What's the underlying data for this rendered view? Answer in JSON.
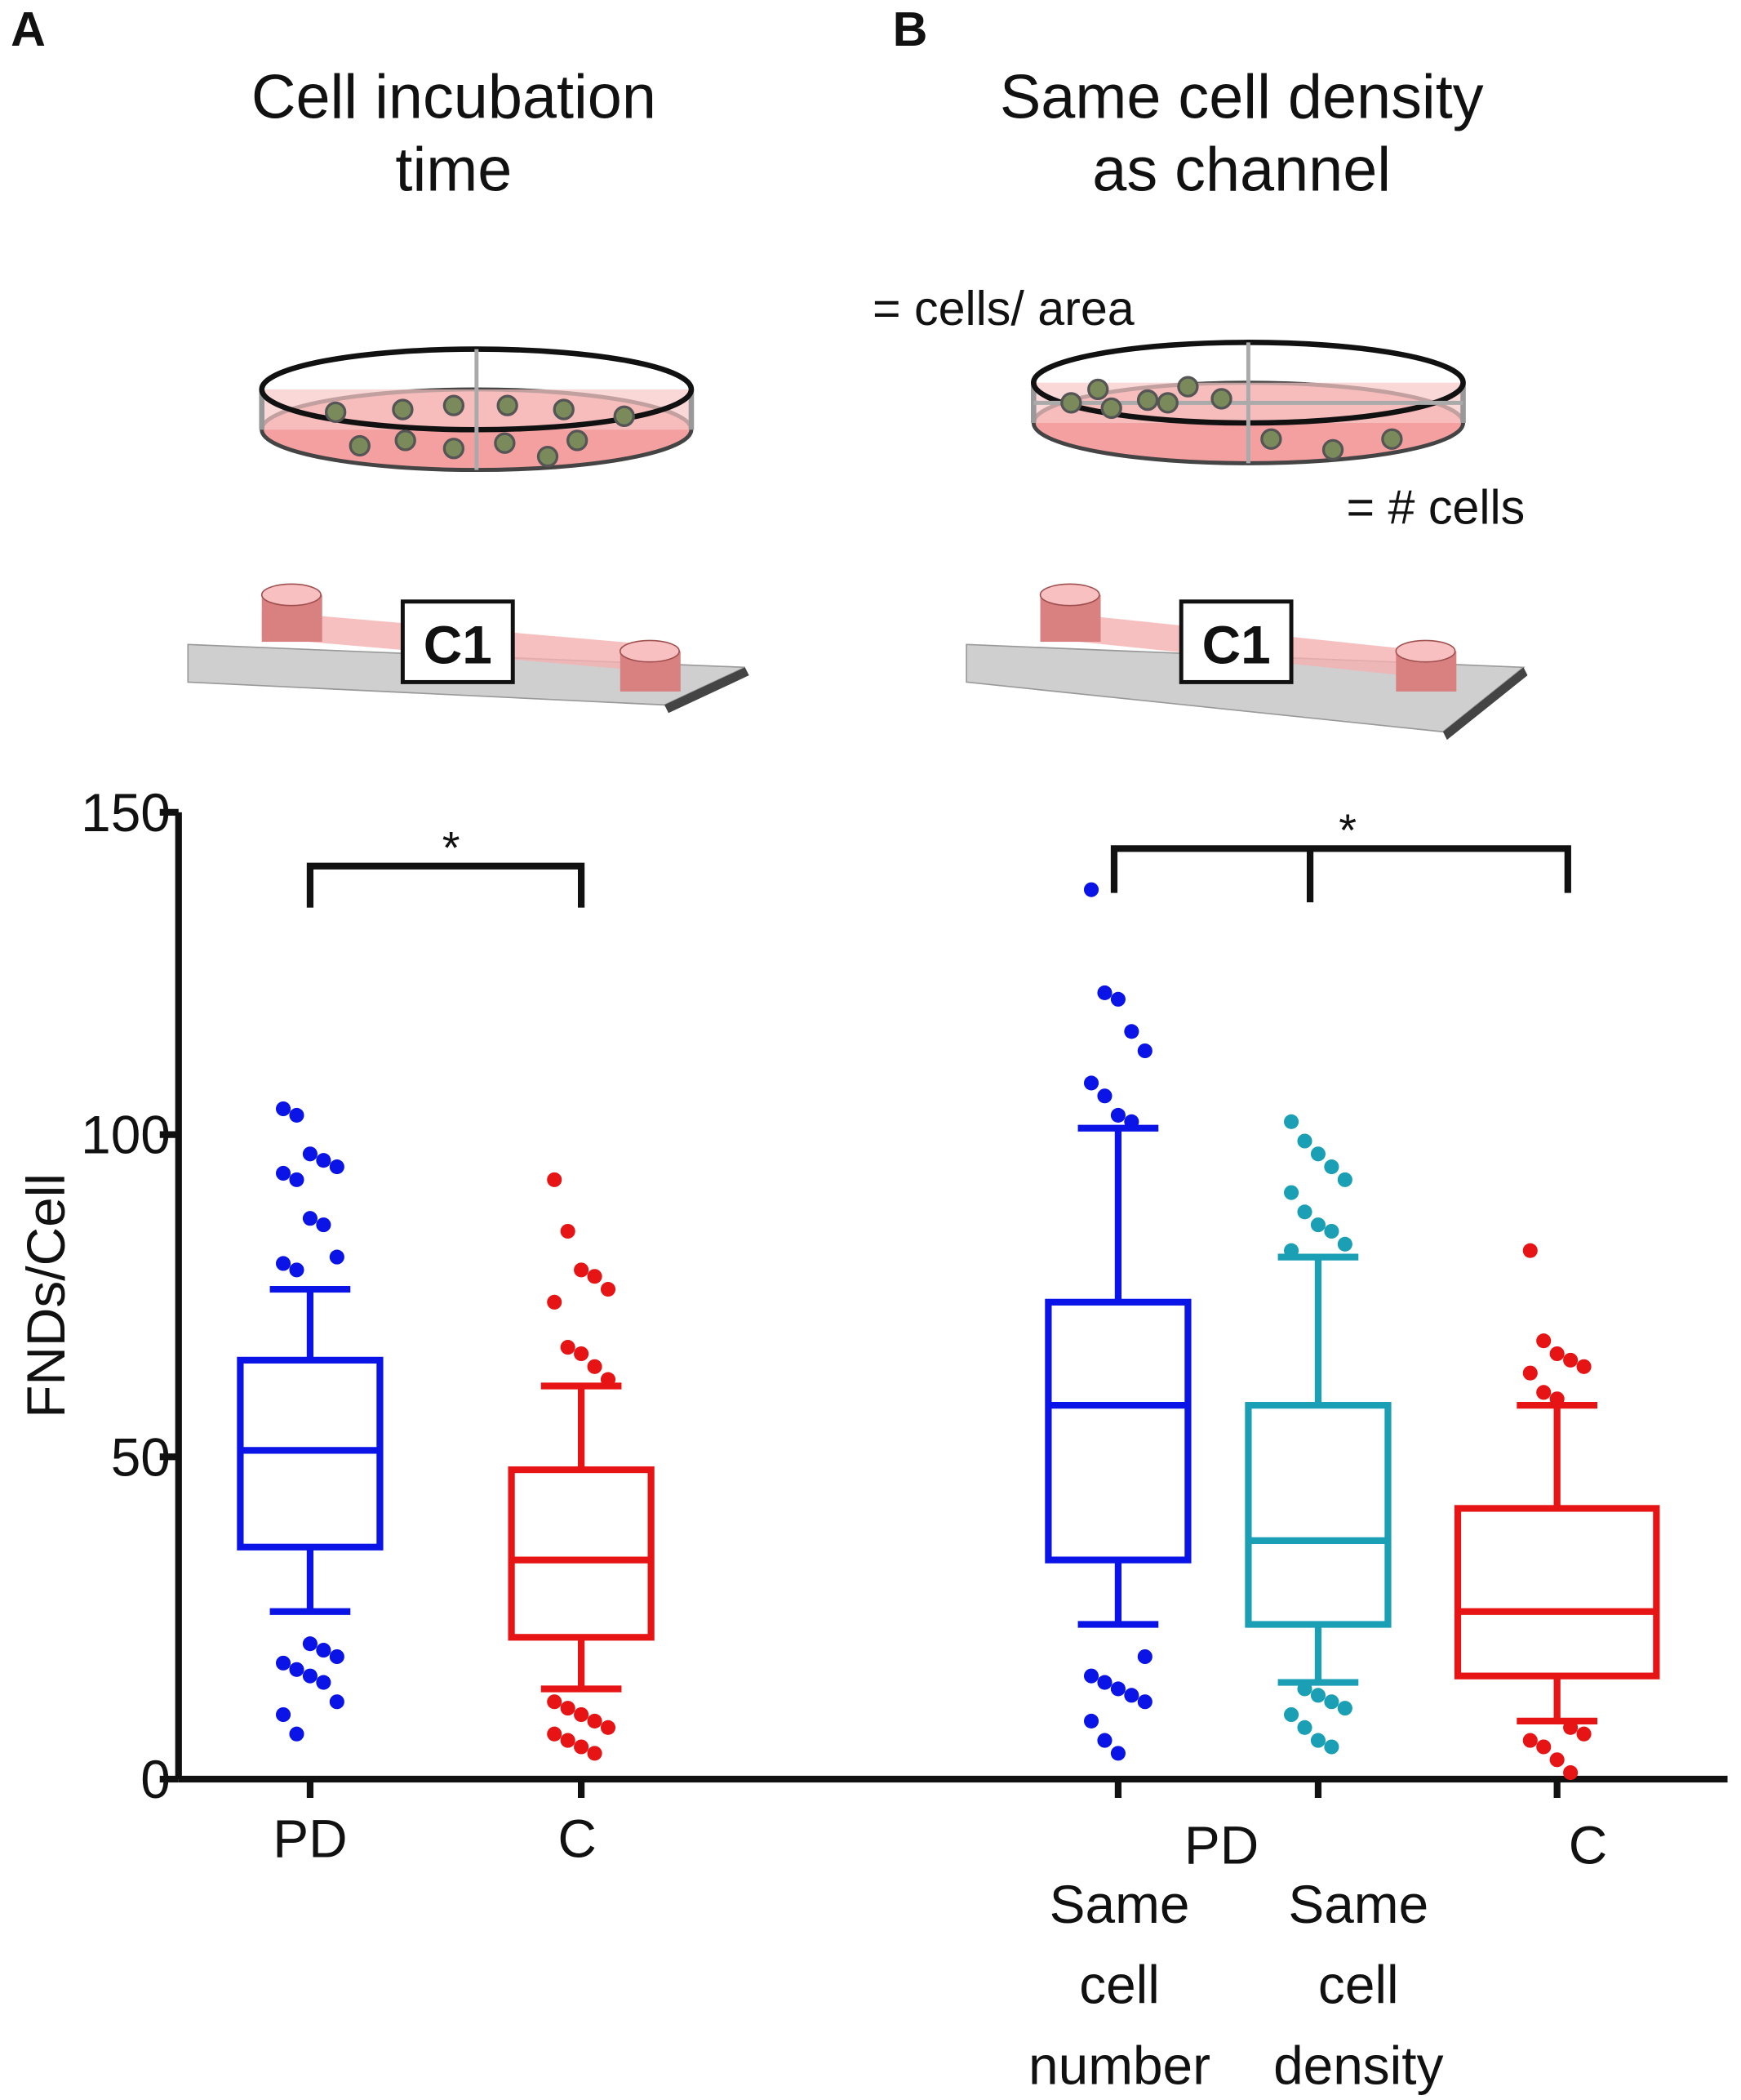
{
  "panels": [
    {
      "letter": "A",
      "title_lines": [
        "Cell incubation",
        "time"
      ],
      "chip_label": "C1"
    },
    {
      "letter": "B",
      "title_lines": [
        "Same cell density",
        "as channel"
      ],
      "chip_label": "C1",
      "dish_notes": [
        "= cells/ area",
        "= # cells"
      ]
    }
  ],
  "chart_data": {
    "type": "box",
    "y_label": "FNDs/Cell",
    "ylim": [
      0,
      150
    ],
    "yticks": [
      0,
      50,
      100,
      150
    ],
    "x_labels": [
      "PD",
      "C",
      "PD",
      "C"
    ],
    "sub_labels": [
      [
        "Same",
        "cell",
        "number"
      ],
      [
        "Same",
        "cell",
        "density"
      ]
    ],
    "annotations": [
      "*",
      "*"
    ],
    "boxes": [
      {
        "color": "#0a14e6",
        "whisker_low": 26,
        "q1": 36,
        "median": 51,
        "q3": 65,
        "whisker_high": 76,
        "outliers": [
          104,
          103,
          97,
          96,
          95,
          94,
          93,
          87,
          86,
          81,
          80,
          79,
          21,
          20,
          19,
          18,
          17,
          16,
          15,
          12,
          10,
          7
        ]
      },
      {
        "color": "#e61414",
        "whisker_low": 14,
        "q1": 22,
        "median": 34,
        "q3": 48,
        "whisker_high": 61,
        "outliers": [
          93,
          85,
          79,
          78,
          76,
          74,
          67,
          66,
          64,
          62,
          12,
          11,
          10,
          9,
          8,
          7,
          6,
          5,
          4
        ]
      },
      {
        "color": "#0a14e6",
        "whisker_low": 24,
        "q1": 34,
        "median": 58,
        "q3": 74,
        "whisker_high": 101,
        "outliers": [
          138,
          122,
          121,
          116,
          113,
          108,
          106,
          103,
          102,
          19,
          16,
          15,
          14,
          13,
          12,
          9,
          6,
          4
        ]
      },
      {
        "color": "#1a9fb5",
        "whisker_low": 15,
        "q1": 24,
        "median": 37,
        "q3": 58,
        "whisker_high": 81,
        "outliers": [
          102,
          99,
          97,
          95,
          93,
          91,
          88,
          86,
          85,
          83,
          82,
          14,
          13,
          12,
          11,
          10,
          8,
          6,
          5
        ]
      },
      {
        "color": "#e61414",
        "whisker_low": 9,
        "q1": 16,
        "median": 26,
        "q3": 42,
        "whisker_high": 58,
        "outliers": [
          82,
          68,
          66,
          65,
          64,
          63,
          60,
          59,
          8,
          7,
          6,
          5,
          3,
          1
        ]
      }
    ]
  }
}
